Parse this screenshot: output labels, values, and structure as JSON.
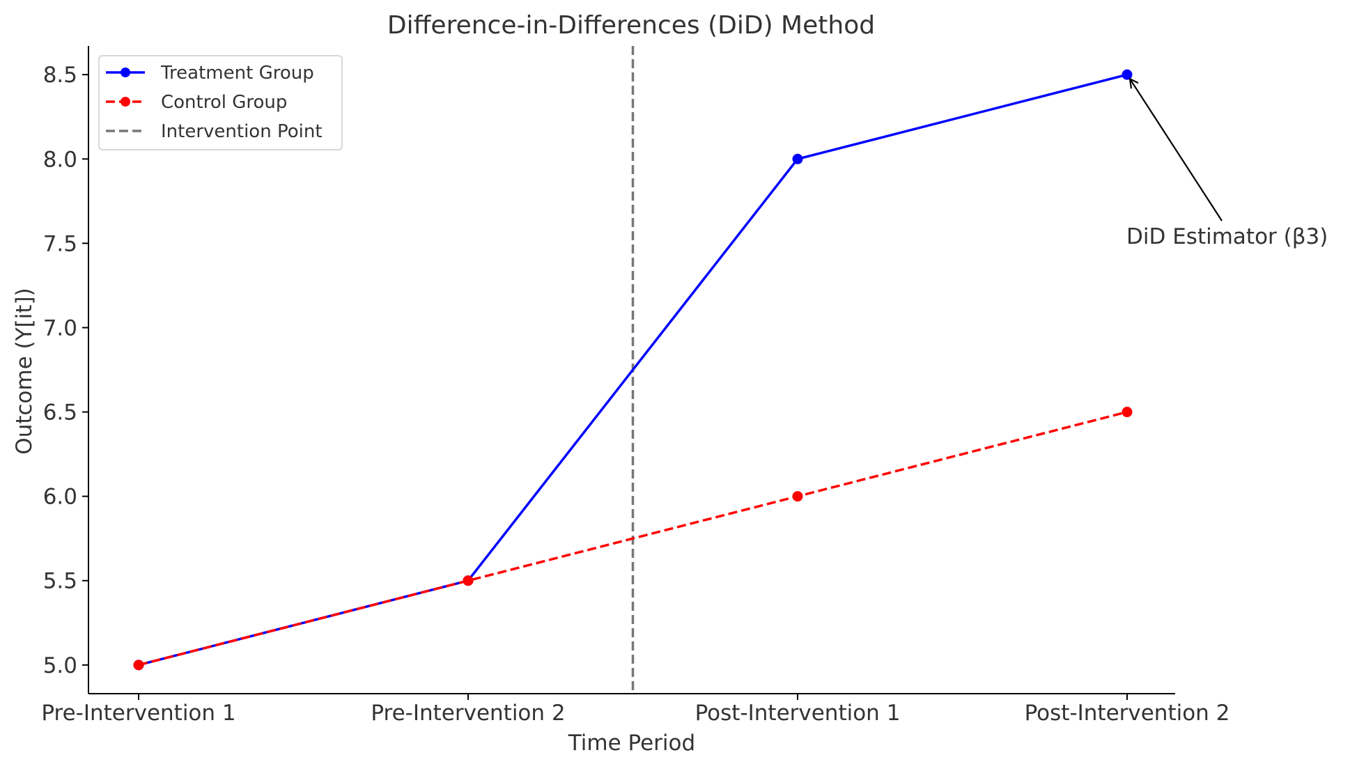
{
  "chart_data": {
    "type": "line",
    "title": "Difference-in-Differences (DiD) Method",
    "xlabel": "Time Period",
    "ylabel": "Outcome (Y[it])",
    "categories": [
      "Pre-Intervention 1",
      "Pre-Intervention 2",
      "Post-Intervention 1",
      "Post-Intervention 2"
    ],
    "ylim": [
      4.83,
      8.67
    ],
    "yticks": [
      "5.0",
      "5.5",
      "6.0",
      "6.5",
      "7.0",
      "7.5",
      "8.0",
      "8.5"
    ],
    "grid": false,
    "legend_position": "top-left",
    "series": [
      {
        "name": "Treatment Group",
        "values": [
          5.0,
          5.5,
          8.0,
          8.5
        ],
        "color": "#0000ff",
        "style": "solid",
        "marker": "circle"
      },
      {
        "name": "Control Group",
        "values": [
          5.0,
          5.5,
          6.0,
          6.5
        ],
        "color": "#ff0000",
        "style": "dashed",
        "marker": "circle"
      }
    ],
    "vline": {
      "name": "Intervention Point",
      "x": 1.5,
      "color": "#777777",
      "style": "dashed"
    },
    "annotation": {
      "text": "DiD Estimator (β3)",
      "target_category_index": 3,
      "target_value": 8.5
    }
  }
}
